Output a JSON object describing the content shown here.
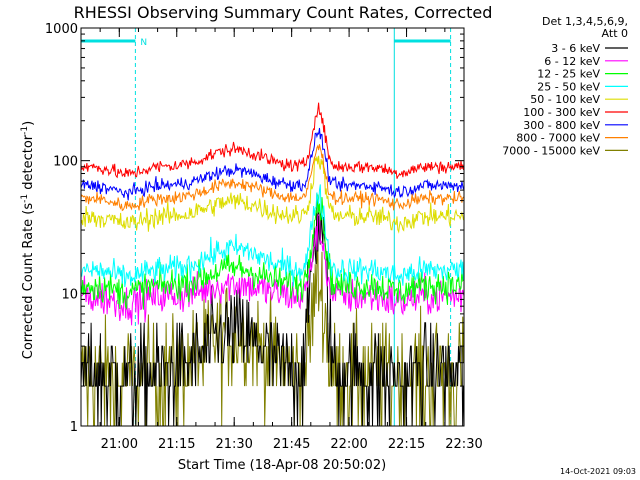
{
  "chart_data": {
    "type": "line",
    "title": "RHESSI Observing Summary Count Rates, Corrected",
    "xlabel": "Start Time (18-Apr-08 20:50:02)",
    "ylabel_main": "Corrected Count Rate (s",
    "ylabel_sup1": "-1",
    "ylabel_mid": " detector",
    "ylabel_sup2": "-1",
    "ylabel_end": ")",
    "y_scale": "log",
    "ylim": [
      1,
      1000
    ],
    "y_ticks": [
      {
        "value": 1,
        "label": "1"
      },
      {
        "value": 10,
        "label": "10"
      },
      {
        "value": 100,
        "label": "100"
      },
      {
        "value": 1000,
        "label": "1000"
      }
    ],
    "x_unit": "minutes",
    "x_range_minutes": [
      0,
      100
    ],
    "x_ticks": [
      {
        "minutes": 10,
        "label": "21:00"
      },
      {
        "minutes": 25,
        "label": "21:15"
      },
      {
        "minutes": 40,
        "label": "21:30"
      },
      {
        "minutes": 55,
        "label": "21:45"
      },
      {
        "minutes": 70,
        "label": "22:00"
      },
      {
        "minutes": 85,
        "label": "22:15"
      },
      {
        "minutes": 100,
        "label": "22:30"
      }
    ],
    "legend_header": [
      "Det 1,3,4,5,6,9,",
      "Att 0"
    ],
    "legend_placement": "right",
    "night_intervals": [
      {
        "from": 0,
        "to": 14.2,
        "flag": "N"
      },
      {
        "from": 81.8,
        "to": 96.5,
        "flag": ""
      }
    ],
    "series": [
      {
        "name": "3 - 6 keV",
        "color": "#000000",
        "base": 2.5,
        "peak": 35,
        "noise": 0.18,
        "hump": 2.0,
        "quantized": true
      },
      {
        "name": "6 - 12 keV",
        "color": "#ff00ff",
        "base": 9.5,
        "peak": 30,
        "noise": 0.07,
        "hump": 1.25
      },
      {
        "name": "12 - 25 keV",
        "color": "#00ff00",
        "base": 11.5,
        "peak": 48,
        "noise": 0.06,
        "hump": 1.35
      },
      {
        "name": "25 - 50 keV",
        "color": "#00ffff",
        "base": 15,
        "peak": 55,
        "noise": 0.05,
        "hump": 1.45
      },
      {
        "name": "50 - 100 keV",
        "color": "#dddd00",
        "base": 38,
        "peak": 105,
        "noise": 0.04,
        "hump": 1.3
      },
      {
        "name": "100 - 300 keV",
        "color": "#ff0000",
        "base": 90,
        "peak": 240,
        "noise": 0.025,
        "hump": 1.35
      },
      {
        "name": "300 - 800 keV",
        "color": "#0000ff",
        "base": 65,
        "peak": 165,
        "noise": 0.025,
        "hump": 1.3
      },
      {
        "name": "800 - 7000 keV",
        "color": "#ff8000",
        "base": 52,
        "peak": 125,
        "noise": 0.025,
        "hump": 1.3
      },
      {
        "name": "7000 - 15000 keV",
        "color": "#808000",
        "base": 2.5,
        "peak": 12,
        "noise": 0.2,
        "hump": 2.0,
        "quantized": true
      }
    ],
    "hump_center_minutes": 40,
    "peak_center_minutes": 62
  },
  "footer_timestamp": "14-Oct-2021 09:03"
}
